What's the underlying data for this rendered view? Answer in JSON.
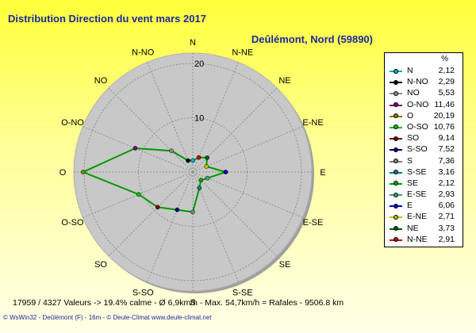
{
  "title": "Distribution Direction du vent   mars 2017",
  "location": "Deûlémont, Nord (59890)",
  "stats": "17959 / 4327 Valeurs  -> 19.4% calme   -   Ø 6,9km/h  -  Max. 54,7km/h = Rafales   -   9506.8 km",
  "footer": "© WsWin32  -  Deûlémont (F) - 16m  -  © Deule-Climat www.deule-climat.net",
  "legend_header": "%",
  "colors": {
    "rose": "#009900",
    "disc": "#c8c8c8",
    "grid": "#909090"
  },
  "chart_data": {
    "type": "radar",
    "title": "Distribution Direction du vent   mars 2017",
    "unit": "%",
    "rmax": 20,
    "rings": [
      10,
      20
    ],
    "ring_labels": [
      "10",
      "20"
    ],
    "directions": [
      "N",
      "N-NE",
      "NE",
      "E-NE",
      "E",
      "E-SE",
      "SE",
      "S-SE",
      "S",
      "S-SO",
      "SO",
      "O-SO",
      "O",
      "O-NO",
      "NO",
      "N-NO"
    ],
    "values": [
      2.12,
      2.91,
      3.73,
      2.71,
      6.06,
      2.93,
      2.12,
      3.16,
      7.36,
      7.52,
      9.14,
      10.76,
      20.19,
      11.46,
      5.53,
      2.29
    ],
    "legend": [
      {
        "name": "N",
        "value": "2,12",
        "color": "#00b0b0"
      },
      {
        "name": "N-NO",
        "value": "2,29",
        "color": "#000000"
      },
      {
        "name": "NO",
        "value": "5,53",
        "color": "#8a8a8a"
      },
      {
        "name": "O-NO",
        "value": "11,46",
        "color": "#800080"
      },
      {
        "name": "O",
        "value": "20,19",
        "color": "#808000"
      },
      {
        "name": "O-SO",
        "value": "10,76",
        "color": "#00c000"
      },
      {
        "name": "SO",
        "value": "9,14",
        "color": "#800000"
      },
      {
        "name": "S-SO",
        "value": "7,52",
        "color": "#000080"
      },
      {
        "name": "S",
        "value": "7,36",
        "color": "#808080"
      },
      {
        "name": "S-SE",
        "value": "3,16",
        "color": "#008080"
      },
      {
        "name": "SE",
        "value": "2,12",
        "color": "#00a000"
      },
      {
        "name": "E-SE",
        "value": "2,93",
        "color": "#40a080"
      },
      {
        "name": "E",
        "value": "6,06",
        "color": "#0000c0"
      },
      {
        "name": "E-NE",
        "value": "2,71",
        "color": "#c0c000"
      },
      {
        "name": "NE",
        "value": "3,73",
        "color": "#006000"
      },
      {
        "name": "N-NE",
        "value": "2,91",
        "color": "#c00000"
      }
    ]
  }
}
